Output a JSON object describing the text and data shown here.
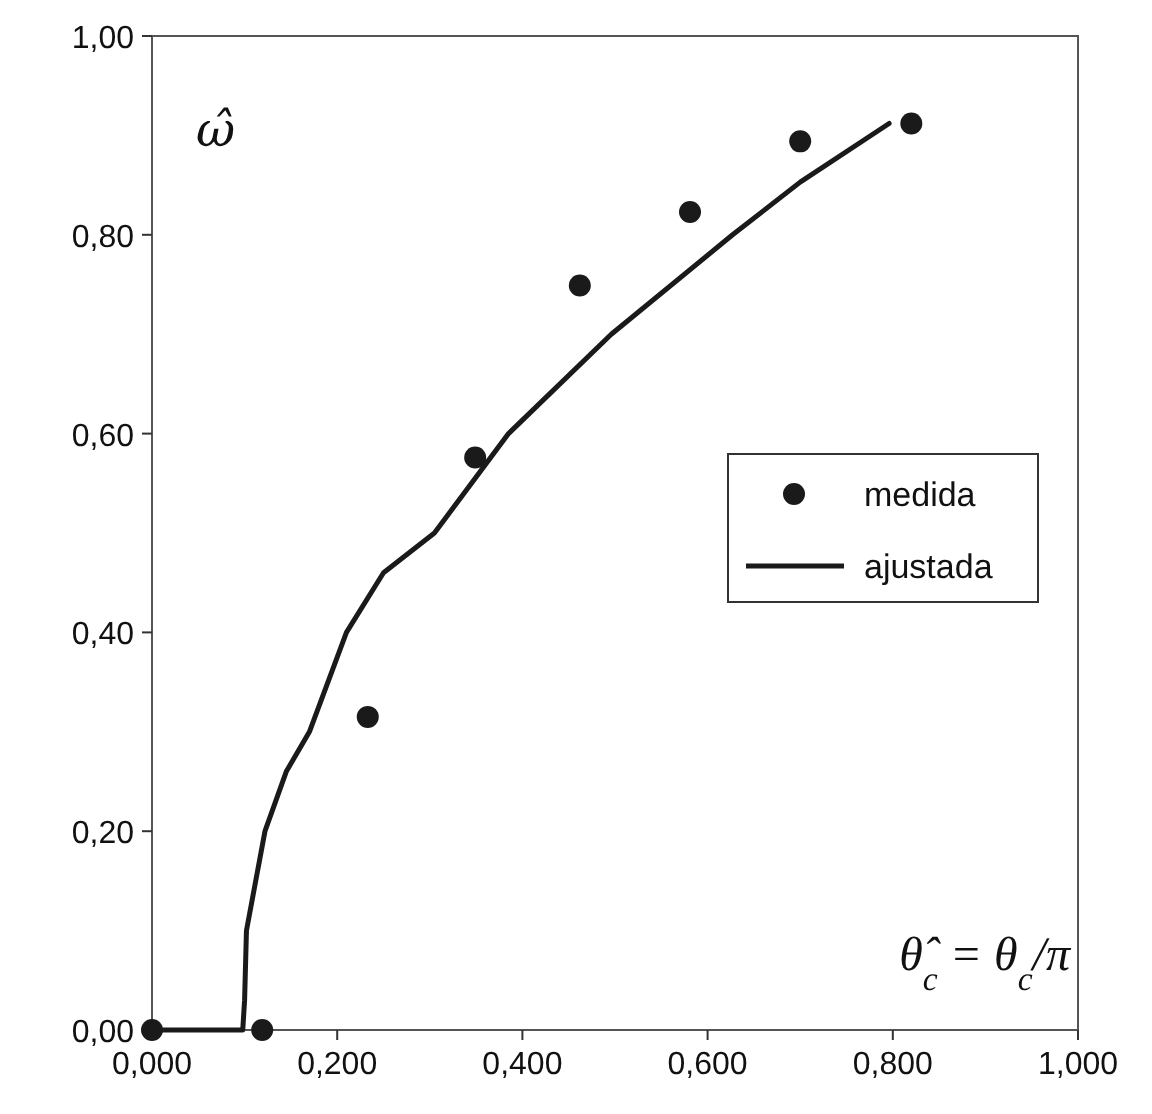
{
  "chart_data": {
    "type": "scatter",
    "xlabel": "θ̂$_{c}$ = θ$_{c}$/π",
    "ylabel": "ω̂",
    "xlim": [
      0,
      1
    ],
    "ylim": [
      0,
      1
    ],
    "xticks": [
      {
        "value": 0,
        "label": "0,000"
      },
      {
        "value": 0.2,
        "label": "0,200"
      },
      {
        "value": 0.4,
        "label": "0,400"
      },
      {
        "value": 0.6,
        "label": "0,600"
      },
      {
        "value": 0.8,
        "label": "0,800"
      },
      {
        "value": 1,
        "label": "1,000"
      }
    ],
    "yticks": [
      {
        "value": 0,
        "label": "0,00"
      },
      {
        "value": 0.2,
        "label": "0,20"
      },
      {
        "value": 0.4,
        "label": "0,40"
      },
      {
        "value": 0.6,
        "label": "0,60"
      },
      {
        "value": 0.8,
        "label": "0,80"
      },
      {
        "value": 1,
        "label": "1,00"
      }
    ],
    "legend": "right",
    "grid": false,
    "series": [
      {
        "name": "medida",
        "marker": "circle",
        "color": "#1a1a1a",
        "x": [
          0,
          0.119,
          0.233,
          0.349,
          0.462,
          0.581,
          0.7,
          0.82
        ],
        "values": [
          0,
          0,
          0.315,
          0.576,
          0.749,
          0.823,
          0.894,
          0.912
        ]
      },
      {
        "name": "ajustada",
        "type": "line",
        "marker": "none",
        "line_style": "solid",
        "color": "#1a1a1a",
        "x": [
          0,
          0.098,
          0.1,
          0.102,
          0.112,
          0.122,
          0.145,
          0.17,
          0.21,
          0.25,
          0.305,
          0.385,
          0.496,
          0.627,
          0.7,
          0.796
        ],
        "values": [
          0,
          0,
          0.03,
          0.1,
          0.15,
          0.2,
          0.26,
          0.3,
          0.4,
          0.46,
          0.5,
          0.6,
          0.7,
          0.8,
          0.853,
          0.912
        ]
      }
    ]
  }
}
